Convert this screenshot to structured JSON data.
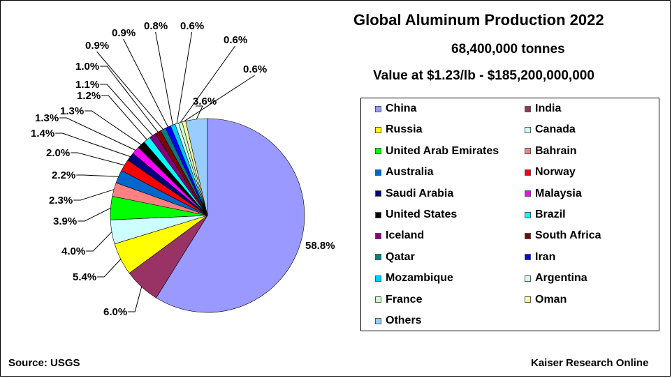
{
  "chart_data": {
    "type": "pie",
    "title": "Global Aluminum Production 2022",
    "subtitle": "68,400,000 tonnes",
    "value_line": "Value at $1.23/lb   -  $185,200,000,000",
    "legend_placement": "right",
    "categories": [
      "China",
      "India",
      "Russia",
      "Canada",
      "United Arab Emirates",
      "Bahrain",
      "Australia",
      "Norway",
      "Saudi Arabia",
      "Malaysia",
      "United States",
      "Brazil",
      "Iceland",
      "South Africa",
      "Qatar",
      "Iran",
      "Mozambique",
      "Argentina",
      "France",
      "Oman",
      "Others"
    ],
    "values": [
      58.8,
      6.0,
      5.4,
      4.0,
      3.9,
      2.3,
      2.2,
      2.0,
      1.4,
      1.3,
      1.3,
      1.2,
      1.1,
      1.0,
      0.9,
      0.9,
      0.8,
      0.6,
      0.6,
      0.6,
      3.6
    ],
    "data_labels": [
      "58.8%",
      "6.0%",
      "5.4%",
      "4.0%",
      "3.9%",
      "2.3%",
      "2.2%",
      "2.0%",
      "1.4%",
      "1.3%",
      "1.3%",
      "1.2%",
      "1.1%",
      "1.0%",
      "0.9%",
      "0.9%",
      "0.8%",
      "0.6%",
      "0.6%",
      "0.6%",
      "3.6%"
    ],
    "colors": [
      "#9999ff",
      "#993366",
      "#ffff00",
      "#ccffff",
      "#00ff00",
      "#ff8080",
      "#0066cc",
      "#ff0000",
      "#000080",
      "#ff00ff",
      "#000000",
      "#00ffff",
      "#800080",
      "#800000",
      "#008080",
      "#0000ff",
      "#00ccff",
      "#ccffff",
      "#ccffcc",
      "#ffff99",
      "#99ccff"
    ]
  },
  "footer": {
    "source": "Source: USGS",
    "credit": "Kaiser Research Online"
  }
}
